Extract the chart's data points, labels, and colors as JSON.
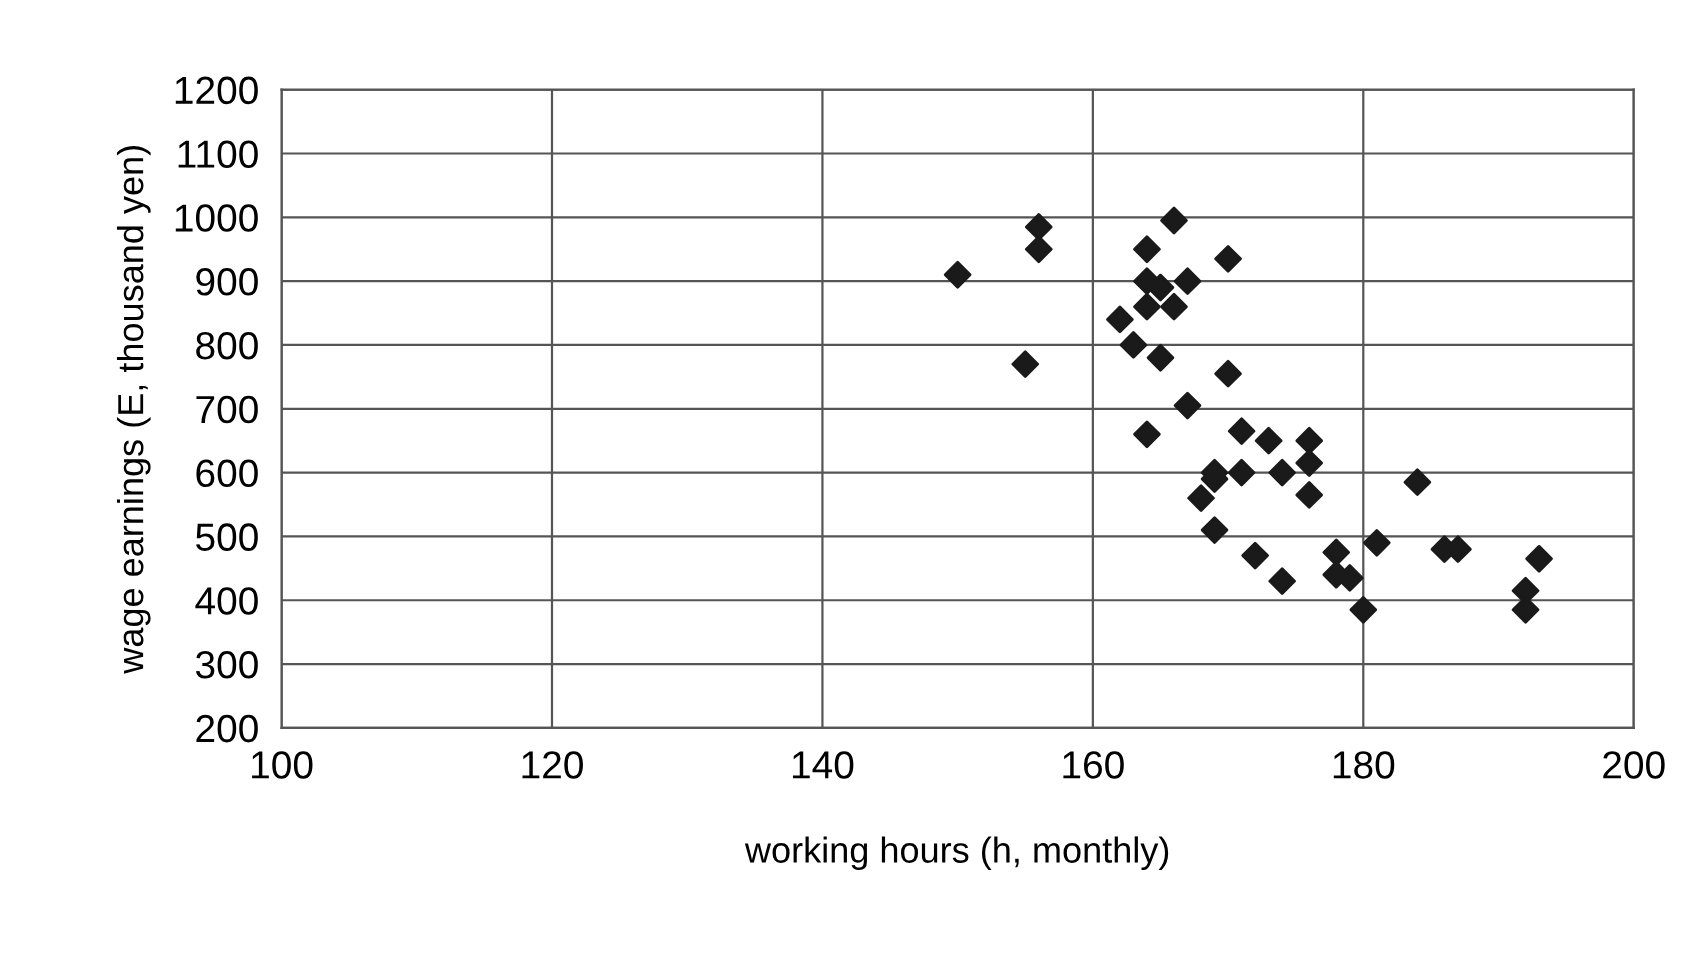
{
  "chart_data": {
    "type": "scatter",
    "xlabel": "working hours (h, monthly)",
    "ylabel": "wage earnings (E, thousand yen)",
    "x": [
      150,
      155,
      156,
      156,
      162,
      163,
      164,
      164,
      164,
      164,
      165,
      165,
      166,
      166,
      167,
      167,
      168,
      169,
      169,
      169,
      170,
      170,
      171,
      171,
      172,
      173,
      174,
      174,
      176,
      176,
      176,
      178,
      178,
      179,
      180,
      181,
      184,
      186,
      187,
      192,
      192,
      193
    ],
    "series": [
      {
        "color": "#1a1a1a",
        "values": [
          910,
          770,
          985,
          950,
          840,
          800,
          950,
          900,
          860,
          660,
          890,
          780,
          995,
          860,
          900,
          705,
          560,
          590,
          510,
          600,
          935,
          755,
          665,
          600,
          470,
          650,
          600,
          430,
          650,
          615,
          565,
          475,
          440,
          435,
          385,
          490,
          585,
          480,
          480,
          415,
          385,
          465
        ]
      }
    ],
    "xlim": [
      100,
      200
    ],
    "xticks": [
      100,
      120,
      140,
      160,
      180,
      200
    ],
    "ylim": [
      200,
      1200
    ],
    "yticks": [
      200,
      300,
      400,
      500,
      600,
      700,
      800,
      900,
      1000,
      1100,
      1200
    ],
    "grid": true,
    "marker": "diamond",
    "legend": false
  }
}
